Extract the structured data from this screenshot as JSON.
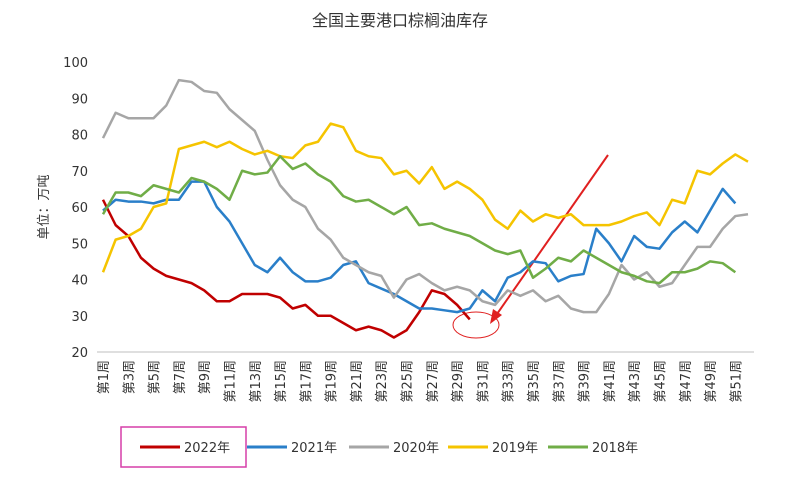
{
  "chart_data": {
    "type": "line",
    "title": "全国主要港口棕榈油库存",
    "y_label": "单位：万吨",
    "categories": [
      "第1周",
      null,
      "第3周",
      null,
      "第5周",
      null,
      "第7周",
      null,
      "第9周",
      null,
      "第11周",
      null,
      "第13周",
      null,
      "第15周",
      null,
      "第17周",
      null,
      "第19周",
      null,
      "第21周",
      null,
      "第23周",
      null,
      "第25周",
      null,
      "第27周",
      null,
      "第29周",
      null,
      "第31周",
      null,
      "第33周",
      null,
      "第35周",
      null,
      "第37周",
      null,
      "第39周",
      null,
      "第41周",
      null,
      "第43周",
      null,
      "第45周",
      null,
      "第47周",
      null,
      "第49周",
      null,
      "第51周",
      null
    ],
    "ylim": [
      20,
      100
    ],
    "yticks": [
      20,
      30,
      40,
      50,
      60,
      70,
      80,
      90,
      100
    ],
    "series": [
      {
        "name": "2022年",
        "color": "#c00000",
        "values": [
          62,
          55,
          52,
          46,
          43,
          41,
          40,
          39,
          37,
          34,
          34,
          36,
          36,
          36,
          35,
          32,
          33,
          30,
          30,
          28,
          26,
          27,
          26,
          24,
          26,
          31,
          37,
          36,
          33,
          29,
          null,
          null,
          null,
          null,
          null,
          null,
          null,
          null,
          null,
          null,
          null,
          null,
          null,
          null,
          null,
          null,
          null,
          null,
          null,
          null,
          null,
          null
        ]
      },
      {
        "name": "2021年",
        "color": "#2a7fc9",
        "values": [
          59,
          62,
          61.5,
          61.5,
          61,
          62,
          62,
          67,
          67,
          60,
          56,
          50,
          44,
          42,
          46,
          42,
          39.5,
          39.5,
          40.5,
          44,
          45,
          39,
          37.5,
          36,
          34,
          32,
          32,
          31.5,
          31,
          32,
          37,
          34,
          40.5,
          42,
          45,
          44.5,
          39.5,
          41,
          41.5,
          54,
          50,
          45,
          52,
          49,
          48.5,
          53,
          56,
          53,
          59,
          65,
          61,
          null
        ]
      },
      {
        "name": "2020年",
        "color": "#a6a6a6",
        "values": [
          79,
          86,
          84.5,
          84.5,
          84.5,
          88,
          95,
          94.5,
          92,
          91.5,
          87,
          84,
          81,
          73,
          66,
          62,
          60,
          54,
          51,
          46,
          44,
          42,
          41,
          35,
          40,
          41.5,
          39,
          37,
          38,
          37,
          34,
          33,
          37,
          35.5,
          37,
          34,
          35.5,
          32,
          31,
          31,
          36,
          44,
          40,
          42,
          38,
          39,
          44,
          49,
          49,
          54,
          57.5,
          58
        ]
      },
      {
        "name": "2019年",
        "color": "#f5c400",
        "values": [
          42,
          51,
          52,
          54,
          60,
          61,
          76,
          77,
          78,
          76.5,
          78,
          76,
          74.5,
          75.5,
          74,
          73.5,
          77,
          78,
          83,
          82,
          75.5,
          74,
          73.5,
          69,
          70,
          66.5,
          71,
          65,
          67,
          65,
          62,
          56.5,
          54,
          59,
          56,
          58,
          57,
          58,
          55,
          55,
          55,
          56,
          57.5,
          58.5,
          55,
          62,
          61,
          70,
          69,
          72,
          74.5,
          72.5
        ]
      },
      {
        "name": "2018年",
        "color": "#70ad47",
        "values": [
          58,
          64,
          64,
          63,
          66,
          65,
          64,
          68,
          67,
          65,
          62,
          70,
          69,
          69.5,
          74,
          70.5,
          72,
          69,
          67,
          63,
          61.5,
          62,
          60,
          58,
          60,
          55,
          55.5,
          54,
          53,
          52,
          50,
          48,
          47,
          48,
          40.5,
          43,
          46,
          45,
          48,
          46,
          44,
          42,
          41,
          39.5,
          39,
          42,
          42,
          43,
          45,
          44.5,
          42,
          null
        ]
      }
    ]
  }
}
